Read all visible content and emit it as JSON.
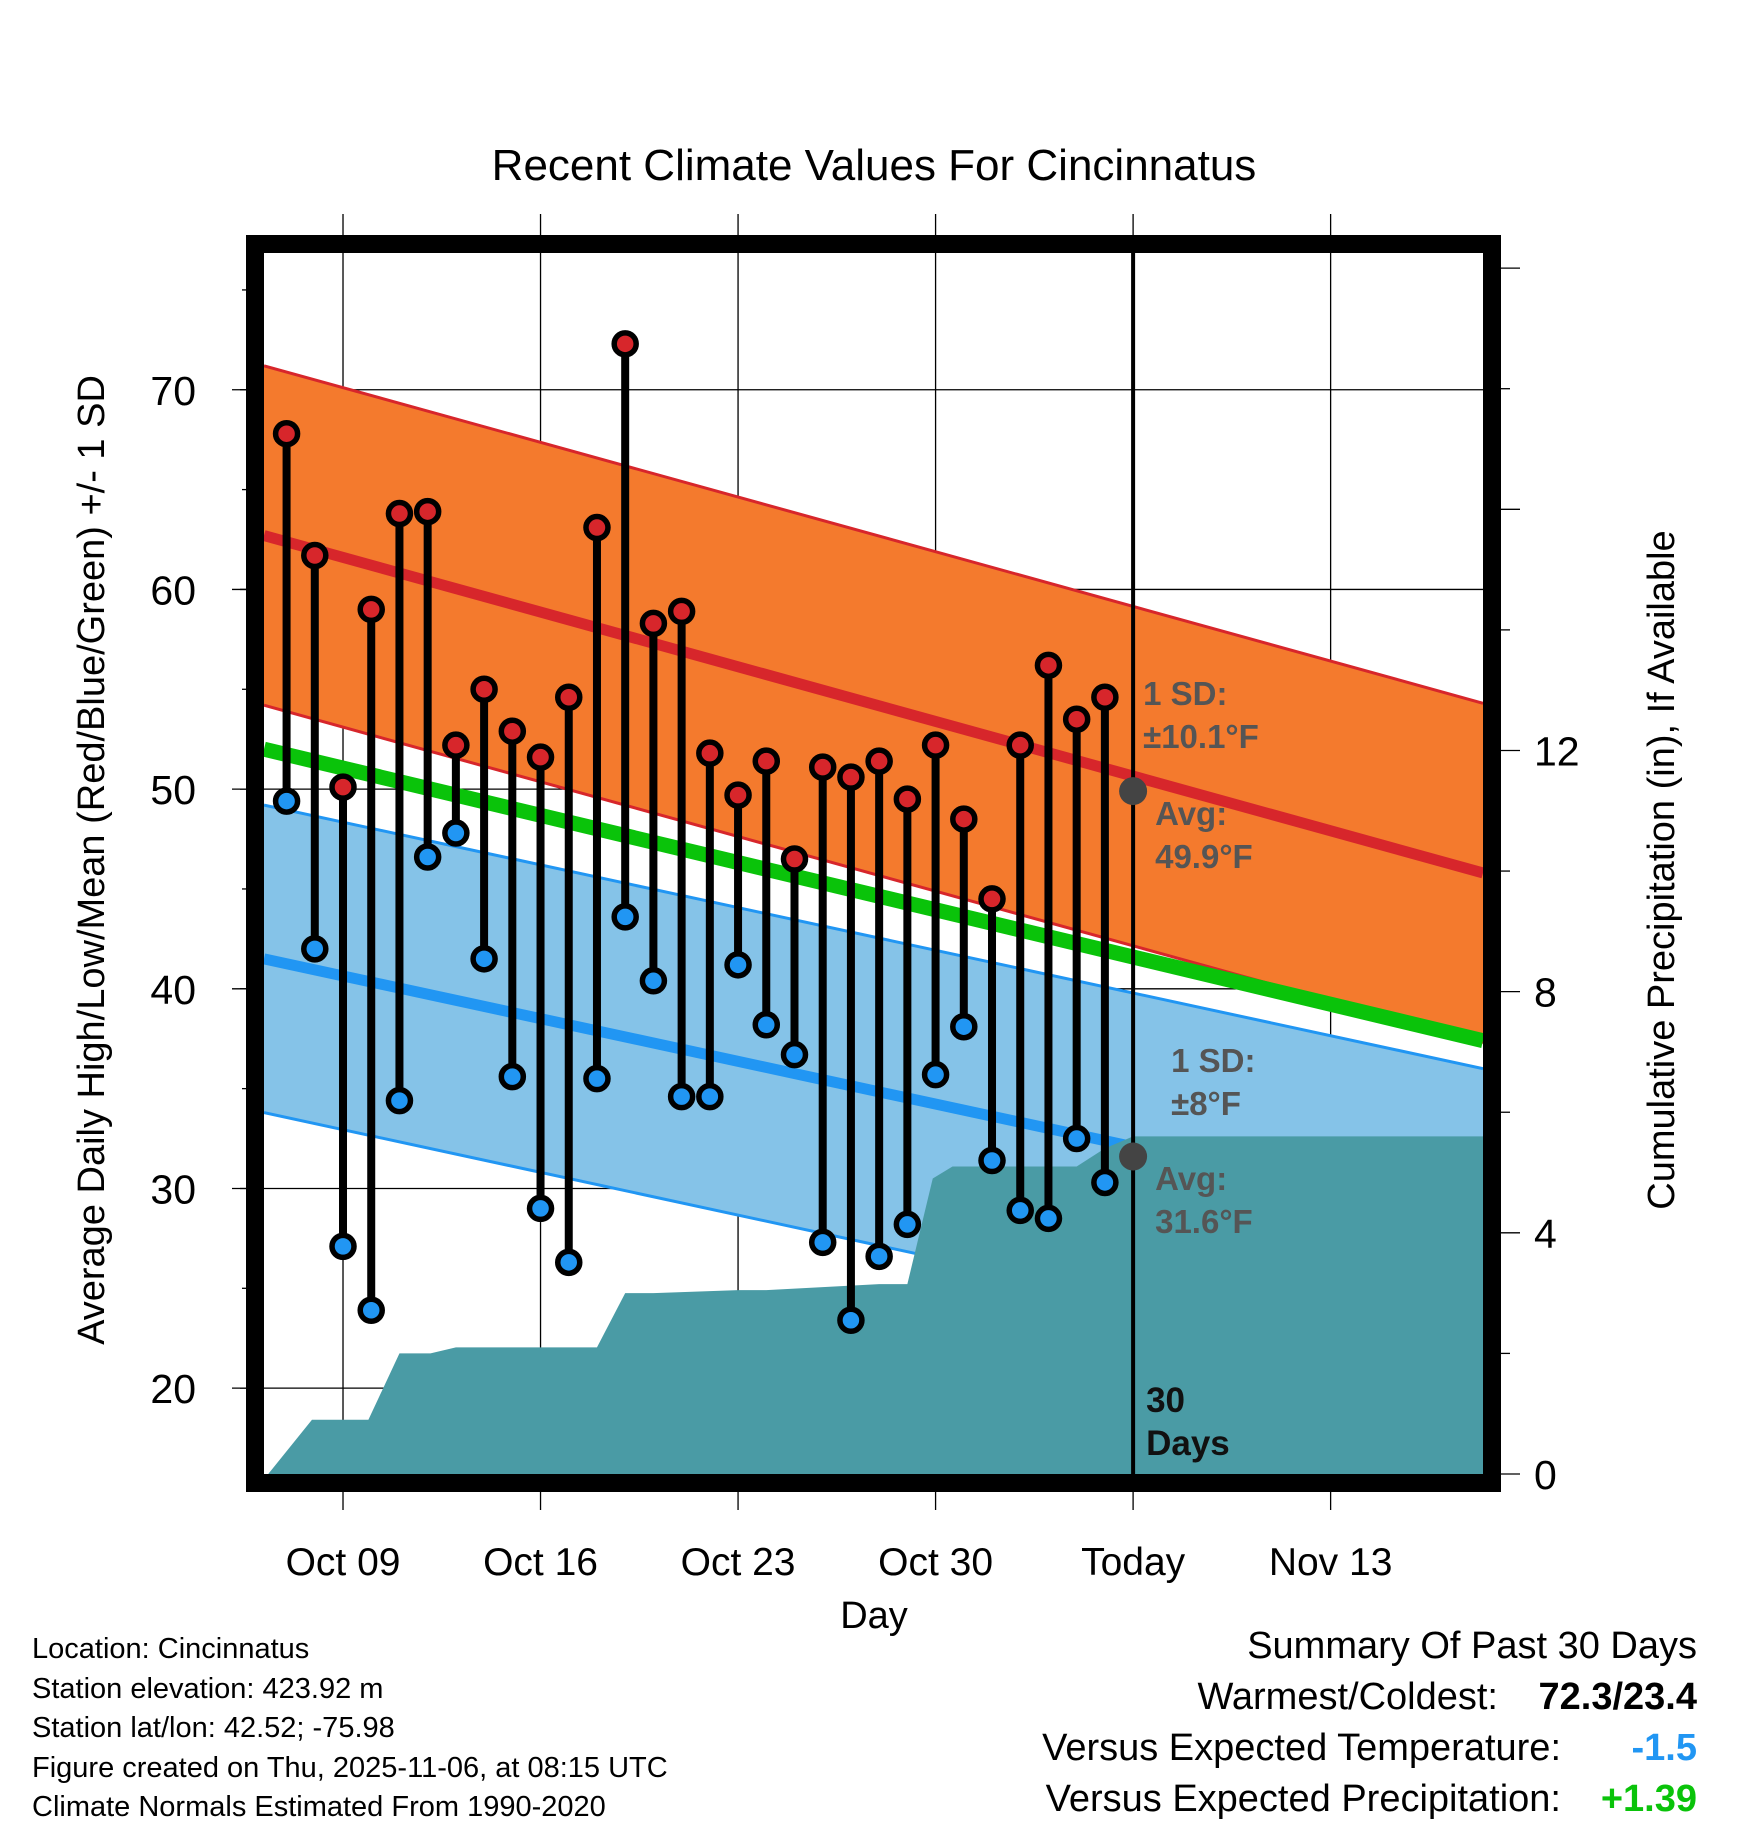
{
  "chart_data": {
    "type": "line",
    "title": "Recent Climate Values For Cincinnatus",
    "xlabel": "Day",
    "ylabel": "Average Daily High/Low/Mean (Red/Blue/Green) +/- 1 SD",
    "y2label": "Cumulative Precipitation (in), If Available",
    "ylim": [
      15.7,
      77.3
    ],
    "y2lim": [
      0,
      20.4
    ],
    "xlim": [
      -2.8,
      40.4
    ],
    "today_index": 30,
    "grid": true,
    "x_ticks": [
      {
        "day": 0,
        "label": "Oct 09"
      },
      {
        "day": 7,
        "label": "Oct 16"
      },
      {
        "day": 14,
        "label": "Oct 23"
      },
      {
        "day": 21,
        "label": "Oct 30"
      },
      {
        "day": 28,
        "label": "Today"
      },
      {
        "day": 35,
        "label": "Nov 13"
      }
    ],
    "y_ticks": [
      20,
      30,
      40,
      50,
      60,
      70
    ],
    "y2_ticks": [
      0,
      4,
      8,
      12
    ],
    "normals": {
      "high_avg": {
        "start": 62.7,
        "end": 45.8
      },
      "high_sd": 8.5,
      "low_avg": {
        "start": 41.5,
        "end": 28.3
      },
      "low_sd": 7.7,
      "mean_avg": {
        "start": 52.0,
        "end": 37.4
      }
    },
    "days": [
      -2,
      -1,
      0,
      1,
      2,
      3,
      4,
      5,
      6,
      7,
      8,
      9,
      10,
      11,
      12,
      13,
      14,
      15,
      16,
      17,
      18,
      19,
      20,
      21,
      22,
      23,
      24,
      25,
      26,
      27
    ],
    "series": [
      {
        "name": "Daily High",
        "color": "#d7262b",
        "values": [
          67.8,
          61.7,
          50.1,
          59.0,
          63.8,
          63.9,
          52.2,
          55.0,
          52.9,
          51.6,
          54.6,
          63.1,
          72.3,
          58.3,
          58.9,
          51.8,
          49.7,
          51.4,
          46.5,
          51.1,
          50.6,
          51.4,
          49.5,
          52.2,
          48.5,
          44.5,
          52.2,
          56.2,
          53.5,
          54.6
        ]
      },
      {
        "name": "Daily Low",
        "color": "#2196f3",
        "values": [
          49.4,
          42.0,
          27.1,
          23.9,
          34.4,
          46.6,
          47.8,
          41.5,
          35.6,
          29.0,
          26.3,
          35.5,
          43.6,
          40.4,
          34.6,
          34.6,
          41.2,
          38.2,
          36.7,
          27.3,
          23.4,
          26.6,
          28.2,
          35.7,
          38.1,
          31.4,
          28.9,
          28.5,
          32.5,
          30.3
        ]
      }
    ],
    "precip": {
      "days": [
        -2.65,
        -1.1,
        0.9,
        2.0,
        3.1,
        4.0,
        9.0,
        10.0,
        11.0,
        14.0,
        15.0,
        19.0,
        20.0,
        20.9,
        21.6,
        26.0,
        27.0,
        28.0,
        40.4
      ],
      "values": [
        0.0,
        0.9,
        0.9,
        2.0,
        2.0,
        2.1,
        2.1,
        3.0,
        3.0,
        3.05,
        3.05,
        3.15,
        3.15,
        4.9,
        5.1,
        5.1,
        5.4,
        5.6,
        5.6
      ]
    },
    "colors": {
      "high_band": "#f47a2d",
      "high_line": "#d7262b",
      "low_band": "#85c3e8",
      "low_line": "#2196f3",
      "mean_line": "#0ac30a",
      "precip": "#4a9ba5",
      "annotation": "#555555"
    },
    "annotations": {
      "high_sd_label": "1 SD:",
      "high_sd_value": "±10.1°F",
      "high_avg_label": "Avg:",
      "high_avg_value": "49.9°F",
      "high_avg_marker": 49.9,
      "low_sd_label": "1 SD:",
      "low_sd_value": "±8°F",
      "low_avg_label": "Avg:",
      "low_avg_value": "31.6°F",
      "low_avg_marker": 31.6,
      "days_count": "30",
      "days_label": "Days"
    }
  },
  "footer": {
    "location": "Location: Cincinnatus",
    "elevation": "Station elevation: 423.92 m",
    "latlon": "Station lat/lon: 42.52; -75.98",
    "created": "Figure created on Thu, 2025-11-06, at 08:15 UTC",
    "normals": "Climate Normals Estimated From 1990-2020"
  },
  "summary": {
    "title": "Summary Of Past 30 Days",
    "warm_cold_label": "Warmest/Coldest:",
    "warm_cold_value": "72.3/23.4",
    "temp_label": "Versus Expected Temperature:",
    "temp_value": "-1.5",
    "temp_color": "#2196f3",
    "precip_label": "Versus Expected Precipitation:",
    "precip_value": "+1.39",
    "precip_color": "#0ac30a"
  }
}
